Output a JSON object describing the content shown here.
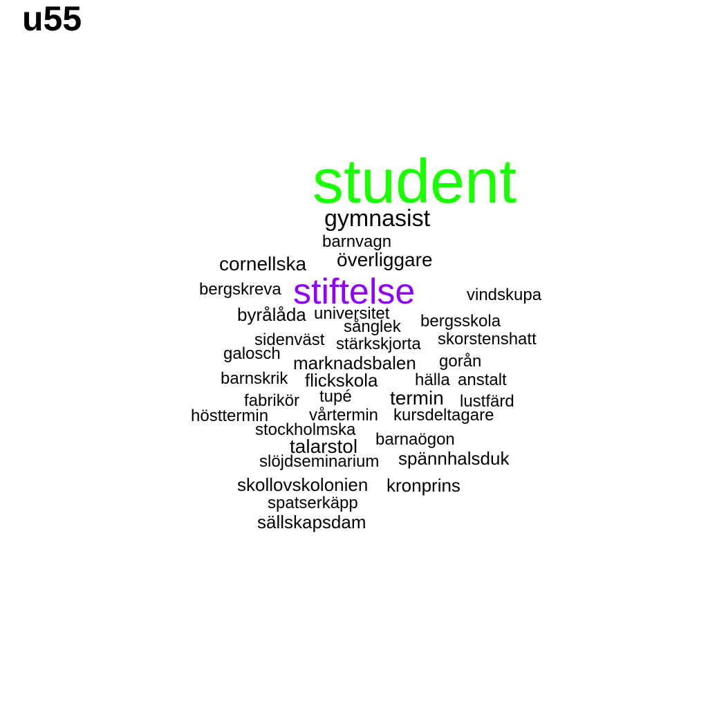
{
  "title": "u55",
  "words": [
    {
      "text": "student",
      "color": "#1aff00",
      "weight": 100
    },
    {
      "text": "stiftelse",
      "color": "#8f00ff",
      "weight": 60
    },
    {
      "text": "gymnasist",
      "color": "#000000",
      "weight": 40
    },
    {
      "text": "barnvagn",
      "color": "#000000",
      "weight": 28
    },
    {
      "text": "cornellska",
      "color": "#000000",
      "weight": 35
    },
    {
      "text": "överliggare",
      "color": "#000000",
      "weight": 35
    },
    {
      "text": "bergskreva",
      "color": "#000000",
      "weight": 28
    },
    {
      "text": "vindskupa",
      "color": "#000000",
      "weight": 28
    },
    {
      "text": "byrålåda",
      "color": "#000000",
      "weight": 30
    },
    {
      "text": "universitet",
      "color": "#000000",
      "weight": 28
    },
    {
      "text": "sånglek",
      "color": "#000000",
      "weight": 28
    },
    {
      "text": "bergsskola",
      "color": "#000000",
      "weight": 28
    },
    {
      "text": "sidenväst",
      "color": "#000000",
      "weight": 28
    },
    {
      "text": "stärkskjorta",
      "color": "#000000",
      "weight": 28
    },
    {
      "text": "skorstenshatt",
      "color": "#000000",
      "weight": 28
    },
    {
      "text": "galosch",
      "color": "#000000",
      "weight": 28
    },
    {
      "text": "marknadsbalen",
      "color": "#000000",
      "weight": 30
    },
    {
      "text": "gorån",
      "color": "#000000",
      "weight": 28
    },
    {
      "text": "barnskrik",
      "color": "#000000",
      "weight": 28
    },
    {
      "text": "flickskola",
      "color": "#000000",
      "weight": 30
    },
    {
      "text": "hälla",
      "color": "#000000",
      "weight": 28
    },
    {
      "text": "anstalt",
      "color": "#000000",
      "weight": 28
    },
    {
      "text": "fabrikör",
      "color": "#000000",
      "weight": 28
    },
    {
      "text": "tupé",
      "color": "#000000",
      "weight": 28
    },
    {
      "text": "termin",
      "color": "#000000",
      "weight": 32
    },
    {
      "text": "lustfärd",
      "color": "#000000",
      "weight": 28
    },
    {
      "text": "hösttermin",
      "color": "#000000",
      "weight": 28
    },
    {
      "text": "vårtermin",
      "color": "#000000",
      "weight": 28
    },
    {
      "text": "kursdeltagare",
      "color": "#000000",
      "weight": 28
    },
    {
      "text": "stockholmska",
      "color": "#000000",
      "weight": 28
    },
    {
      "text": "barnaögon",
      "color": "#000000",
      "weight": 28
    },
    {
      "text": "talarstol",
      "color": "#000000",
      "weight": 32
    },
    {
      "text": "slöjdseminarium",
      "color": "#000000",
      "weight": 28
    },
    {
      "text": "spännhalsduk",
      "color": "#000000",
      "weight": 30
    },
    {
      "text": "skollovskolonien",
      "color": "#000000",
      "weight": 30
    },
    {
      "text": "kronprins",
      "color": "#000000",
      "weight": 30
    },
    {
      "text": "spatserkäpp",
      "color": "#000000",
      "weight": 28
    },
    {
      "text": "sällskapsdam",
      "color": "#000000",
      "weight": 30
    }
  ]
}
